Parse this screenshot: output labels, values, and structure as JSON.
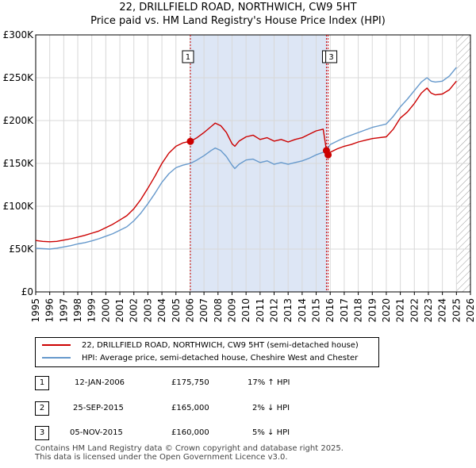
{
  "title": "22, DRILLFIELD ROAD, NORTHWICH, CW9 5HT",
  "subtitle": "Price paid vs. HM Land Registry's House Price Index (HPI)",
  "chart_data": {
    "type": "line",
    "title": "22, DRILLFIELD ROAD, NORTHWICH, CW9 5HT",
    "subtitle": "Price paid vs. HM Land Registry's House Price Index (HPI)",
    "xlim": [
      1995,
      2026
    ],
    "ylim": [
      0,
      300000
    ],
    "x_ticks": [
      "1995",
      "1996",
      "1997",
      "1998",
      "1999",
      "2000",
      "2001",
      "2002",
      "2003",
      "2004",
      "2005",
      "2006",
      "2007",
      "2008",
      "2009",
      "2010",
      "2011",
      "2012",
      "2013",
      "2014",
      "2015",
      "2016",
      "2017",
      "2018",
      "2019",
      "2020",
      "2021",
      "2022",
      "2023",
      "2024",
      "2025",
      "2026"
    ],
    "y_ticks": [
      {
        "value": 0,
        "label": "£0"
      },
      {
        "value": 50000,
        "label": "£50K"
      },
      {
        "value": 100000,
        "label": "£100K"
      },
      {
        "value": 150000,
        "label": "£150K"
      },
      {
        "value": 200000,
        "label": "£200K"
      },
      {
        "value": 250000,
        "label": "£250K"
      },
      {
        "value": 300000,
        "label": "£300K"
      }
    ],
    "grid": true,
    "shaded_range": [
      2006.03,
      2015.85
    ],
    "hatched_from": 2025.0,
    "series": [
      {
        "name": "22, DRILLFIELD ROAD, NORTHWICH, CW9 5HT (semi-detached house)",
        "color": "#cc0000",
        "points": [
          [
            1995.0,
            60000
          ],
          [
            1995.5,
            59000
          ],
          [
            1996.0,
            58500
          ],
          [
            1996.5,
            59000
          ],
          [
            1997.0,
            60500
          ],
          [
            1997.5,
            62000
          ],
          [
            1998.0,
            64000
          ],
          [
            1998.5,
            66000
          ],
          [
            1999.0,
            68500
          ],
          [
            1999.5,
            71000
          ],
          [
            2000.0,
            75000
          ],
          [
            2000.5,
            79000
          ],
          [
            2001.0,
            84000
          ],
          [
            2001.5,
            89000
          ],
          [
            2002.0,
            97000
          ],
          [
            2002.5,
            108000
          ],
          [
            2003.0,
            121000
          ],
          [
            2003.5,
            135000
          ],
          [
            2004.0,
            150000
          ],
          [
            2004.5,
            162000
          ],
          [
            2005.0,
            170000
          ],
          [
            2005.5,
            174000
          ],
          [
            2006.03,
            175750
          ],
          [
            2006.5,
            180000
          ],
          [
            2007.0,
            186000
          ],
          [
            2007.5,
            193000
          ],
          [
            2007.8,
            197000
          ],
          [
            2008.2,
            194000
          ],
          [
            2008.6,
            186000
          ],
          [
            2009.0,
            173000
          ],
          [
            2009.2,
            170000
          ],
          [
            2009.5,
            176000
          ],
          [
            2010.0,
            181000
          ],
          [
            2010.5,
            183000
          ],
          [
            2011.0,
            178000
          ],
          [
            2011.5,
            180000
          ],
          [
            2012.0,
            176000
          ],
          [
            2012.5,
            178000
          ],
          [
            2013.0,
            175000
          ],
          [
            2013.5,
            178000
          ],
          [
            2014.0,
            180000
          ],
          [
            2014.5,
            184000
          ],
          [
            2015.0,
            188000
          ],
          [
            2015.5,
            190000
          ],
          [
            2015.73,
            165000
          ],
          [
            2015.85,
            160000
          ],
          [
            2016.0,
            163000
          ],
          [
            2016.5,
            167000
          ],
          [
            2017.0,
            170000
          ],
          [
            2017.5,
            172000
          ],
          [
            2018.0,
            175000
          ],
          [
            2018.5,
            177000
          ],
          [
            2019.0,
            179000
          ],
          [
            2019.5,
            180000
          ],
          [
            2020.0,
            181000
          ],
          [
            2020.5,
            190000
          ],
          [
            2021.0,
            203000
          ],
          [
            2021.5,
            210000
          ],
          [
            2022.0,
            220000
          ],
          [
            2022.5,
            232000
          ],
          [
            2022.9,
            238000
          ],
          [
            2023.2,
            232000
          ],
          [
            2023.5,
            230000
          ],
          [
            2024.0,
            231000
          ],
          [
            2024.5,
            236000
          ],
          [
            2025.0,
            246000
          ]
        ]
      },
      {
        "name": "HPI: Average price, semi-detached house, Cheshire West and Chester",
        "color": "#6699cc",
        "points": [
          [
            1995.0,
            51000
          ],
          [
            1995.5,
            50500
          ],
          [
            1996.0,
            50000
          ],
          [
            1996.5,
            51000
          ],
          [
            1997.0,
            52500
          ],
          [
            1997.5,
            54000
          ],
          [
            1998.0,
            56000
          ],
          [
            1998.5,
            57500
          ],
          [
            1999.0,
            59500
          ],
          [
            1999.5,
            62000
          ],
          [
            2000.0,
            65000
          ],
          [
            2000.5,
            68000
          ],
          [
            2001.0,
            72000
          ],
          [
            2001.5,
            76000
          ],
          [
            2002.0,
            83000
          ],
          [
            2002.5,
            92000
          ],
          [
            2003.0,
            103000
          ],
          [
            2003.5,
            115000
          ],
          [
            2004.0,
            128000
          ],
          [
            2004.5,
            138000
          ],
          [
            2005.0,
            145000
          ],
          [
            2005.5,
            148000
          ],
          [
            2006.03,
            150000
          ],
          [
            2006.5,
            154000
          ],
          [
            2007.0,
            159000
          ],
          [
            2007.5,
            165000
          ],
          [
            2007.8,
            168000
          ],
          [
            2008.2,
            165000
          ],
          [
            2008.6,
            158000
          ],
          [
            2009.0,
            148000
          ],
          [
            2009.2,
            144000
          ],
          [
            2009.5,
            149000
          ],
          [
            2010.0,
            154000
          ],
          [
            2010.5,
            155000
          ],
          [
            2011.0,
            151000
          ],
          [
            2011.5,
            153000
          ],
          [
            2012.0,
            149000
          ],
          [
            2012.5,
            151000
          ],
          [
            2013.0,
            149000
          ],
          [
            2013.5,
            151000
          ],
          [
            2014.0,
            153000
          ],
          [
            2014.5,
            156000
          ],
          [
            2015.0,
            160000
          ],
          [
            2015.5,
            163000
          ],
          [
            2015.85,
            168000
          ],
          [
            2016.0,
            172000
          ],
          [
            2016.5,
            176000
          ],
          [
            2017.0,
            180000
          ],
          [
            2017.5,
            183000
          ],
          [
            2018.0,
            186000
          ],
          [
            2018.5,
            189000
          ],
          [
            2019.0,
            192000
          ],
          [
            2019.5,
            194000
          ],
          [
            2020.0,
            196000
          ],
          [
            2020.5,
            205000
          ],
          [
            2021.0,
            216000
          ],
          [
            2021.5,
            225000
          ],
          [
            2022.0,
            235000
          ],
          [
            2022.5,
            245000
          ],
          [
            2022.9,
            250000
          ],
          [
            2023.2,
            246000
          ],
          [
            2023.5,
            245000
          ],
          [
            2024.0,
            246000
          ],
          [
            2024.5,
            252000
          ],
          [
            2025.0,
            262000
          ]
        ]
      }
    ],
    "markers": [
      {
        "id": "1",
        "label": "1",
        "x": 2006.03,
        "y": 175750
      },
      {
        "id": "2",
        "label": "2",
        "x": 2015.73,
        "y": 165000
      },
      {
        "id": "3",
        "label": "3",
        "x": 2015.85,
        "y": 160000
      }
    ]
  },
  "legend": {
    "items": [
      {
        "label": "22, DRILLFIELD ROAD, NORTHWICH, CW9 5HT (semi-detached house)",
        "color": "#cc0000"
      },
      {
        "label": "HPI: Average price, semi-detached house, Cheshire West and Chester",
        "color": "#6699cc"
      }
    ]
  },
  "transactions": [
    {
      "num": "1",
      "date": "12-JAN-2006",
      "price": "£175,750",
      "hpi": "17% ↑ HPI"
    },
    {
      "num": "2",
      "date": "25-SEP-2015",
      "price": "£165,000",
      "hpi": "2% ↓ HPI"
    },
    {
      "num": "3",
      "date": "05-NOV-2015",
      "price": "£160,000",
      "hpi": "5% ↓ HPI"
    }
  ],
  "footer": {
    "line1": "Contains HM Land Registry data © Crown copyright and database right 2025.",
    "line2": "This data is licensed under the Open Government Licence v3.0."
  },
  "colors": {
    "red": "#cc0000",
    "blue": "#6699cc",
    "shade": "#dde6f5",
    "grid": "#d8d8d8"
  }
}
